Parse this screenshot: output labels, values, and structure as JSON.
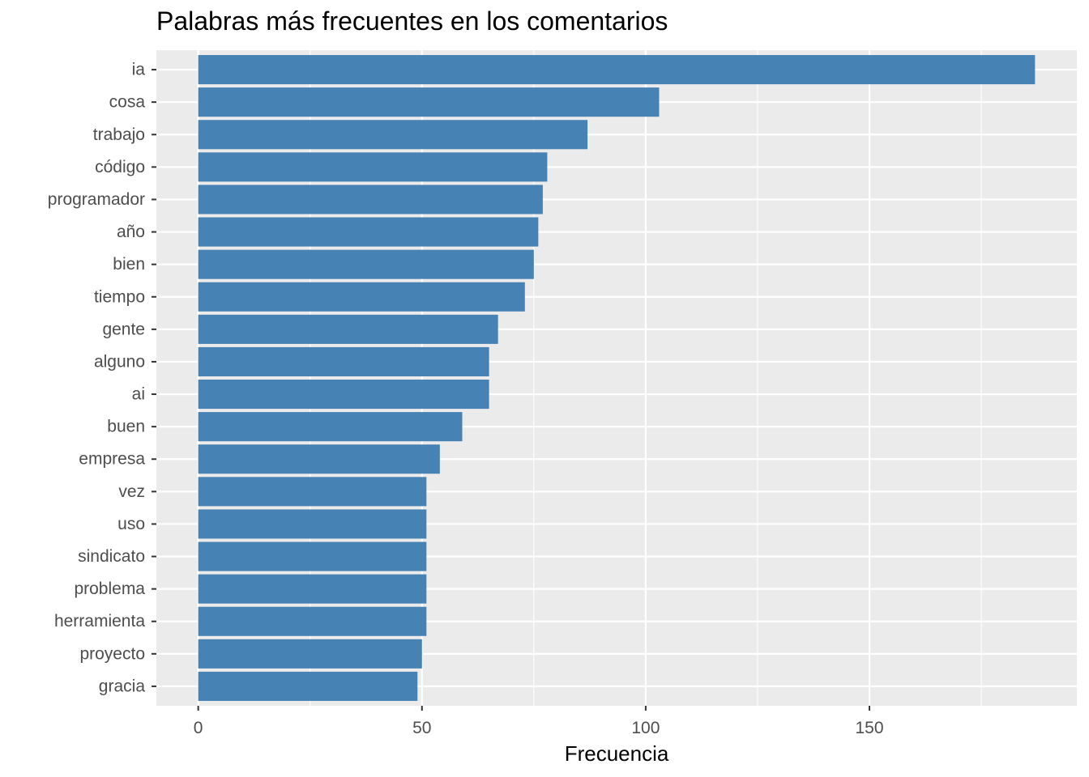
{
  "chart_data": {
    "type": "bar",
    "orientation": "horizontal",
    "title": "Palabras más frecuentes en los comentarios",
    "xlabel": "Frecuencia",
    "ylabel": "",
    "categories": [
      "ia",
      "cosa",
      "trabajo",
      "código",
      "programador",
      "año",
      "bien",
      "tiempo",
      "gente",
      "alguno",
      "ai",
      "buen",
      "empresa",
      "vez",
      "uso",
      "sindicato",
      "problema",
      "herramienta",
      "proyecto",
      "gracia"
    ],
    "values": [
      187,
      103,
      87,
      78,
      77,
      76,
      75,
      73,
      67,
      65,
      65,
      59,
      54,
      51,
      51,
      51,
      51,
      51,
      50,
      49
    ],
    "xticks": [
      0,
      50,
      100,
      150
    ],
    "xticklabels": [
      "0",
      "50",
      "100",
      "150"
    ],
    "xlim": [
      -9.35,
      196.35
    ],
    "grid": true,
    "legend": "none",
    "bar_color": "#4682B4",
    "panel_color": "#EBEBEB",
    "grid_color": "#FFFFFF"
  }
}
